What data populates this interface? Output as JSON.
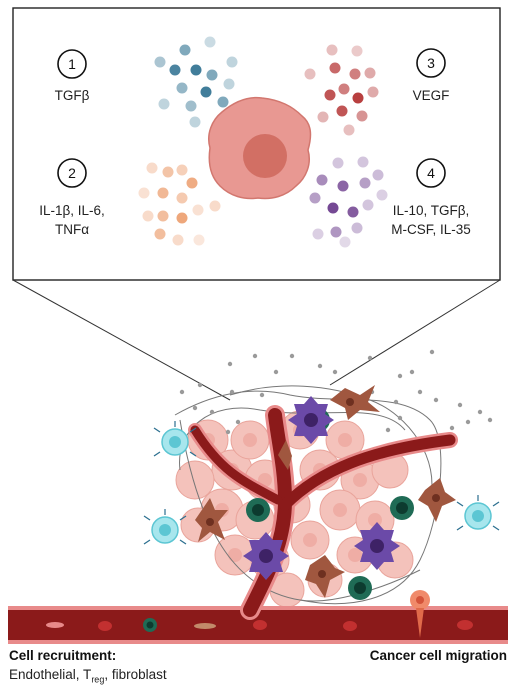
{
  "panel": {
    "items": [
      {
        "number": "1",
        "label": "TGFβ",
        "color": "#2c6f8f"
      },
      {
        "number": "2",
        "label_lines": [
          "IL-1β, IL-6,",
          "TNFα"
        ],
        "color": "#e8894f"
      },
      {
        "number": "3",
        "label": "VEGF",
        "color": "#b02a2a"
      },
      {
        "number": "4",
        "label_lines": [
          "IL-10, TGFβ,",
          "M-CSF, IL-35"
        ],
        "color": "#6e3f8e"
      }
    ]
  },
  "captions": {
    "left_title": "Cell recruitment:",
    "left_sub_prefix": "Endothelial, T",
    "left_sub_subscript": "reg",
    "left_sub_suffix": ", fibroblast",
    "right_title": "Cancer cell migration"
  },
  "colors": {
    "vessel": "#8b1a1a",
    "vessel_wall": "#e88a8a",
    "tumor_cell": "#f2b8b0",
    "tumor_center": "#e07c70",
    "t_cell_green": "#1f6b55",
    "macrophage_purple": "#6b4aa8",
    "fibroblast_brown": "#a0573f",
    "cyan_cell": "#8fdde6"
  }
}
